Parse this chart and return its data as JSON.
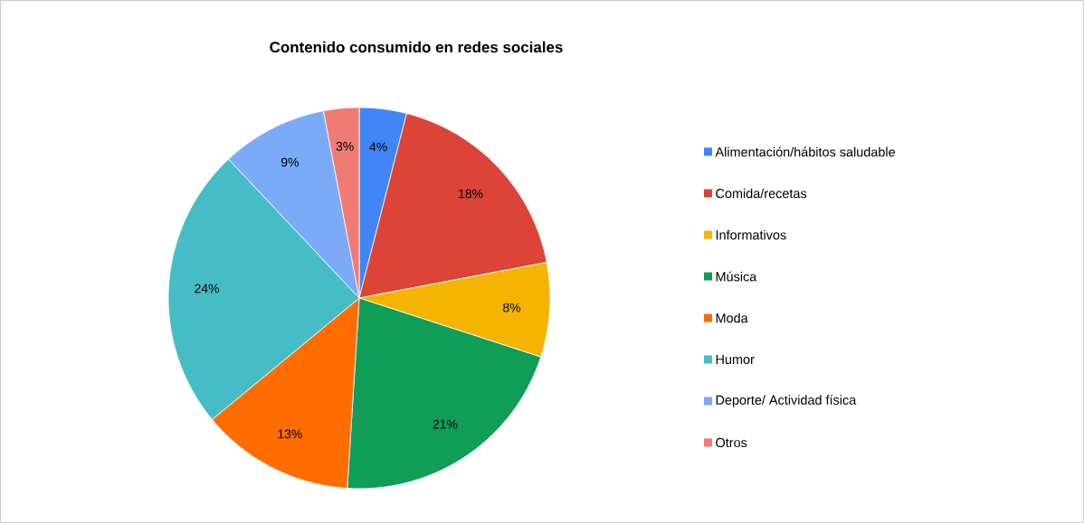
{
  "chart_data": {
    "type": "pie",
    "title": "Contenido consumido en redes sociales",
    "categories": [
      "Alimentación/hábitos saludable",
      "Comida/recetas",
      "Informativos",
      "Música",
      "Moda",
      "Humor",
      "Deporte/ Actividad física",
      "Otros"
    ],
    "values": [
      4,
      18,
      8,
      21,
      13,
      24,
      9,
      3
    ],
    "value_labels": [
      "4%",
      "18%",
      "8%",
      "21%",
      "13%",
      "24%",
      "9%",
      "3%"
    ],
    "colors": [
      "#4285f4",
      "#db4437",
      "#f4b400",
      "#0f9d58",
      "#ff6d01",
      "#46bdc6",
      "#7baaf7",
      "#f07b72"
    ],
    "legend": "right"
  }
}
